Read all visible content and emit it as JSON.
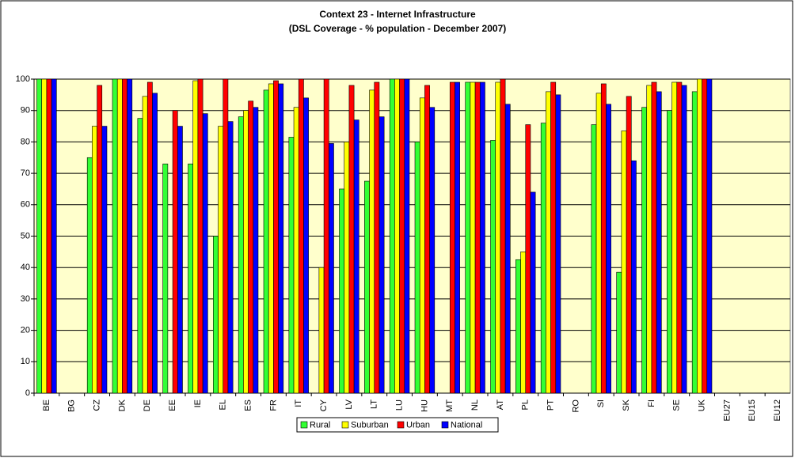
{
  "chart_data": {
    "type": "bar",
    "title": "Context 23 - Internet Infrastructure",
    "subtitle": "(DSL Coverage - % population - December 2007)",
    "categories": [
      "BE",
      "BG",
      "CZ",
      "DK",
      "DE",
      "EE",
      "IE",
      "EL",
      "ES",
      "FR",
      "IT",
      "CY",
      "LV",
      "LT",
      "LU",
      "HU",
      "MT",
      "NL",
      "AT",
      "PL",
      "PT",
      "RO",
      "SI",
      "SK",
      "FI",
      "SE",
      "UK",
      "EU27",
      "EU15",
      "EU12"
    ],
    "series": [
      {
        "name": "Rural",
        "color": "#33ff33",
        "values": [
          100,
          null,
          75,
          100,
          87.5,
          73,
          73,
          50,
          88,
          96.5,
          81.5,
          null,
          65,
          67.5,
          100,
          80,
          null,
          99,
          80.5,
          42.5,
          86,
          null,
          85.5,
          38.5,
          91,
          90,
          96,
          null,
          null,
          null
        ]
      },
      {
        "name": "Suburban",
        "color": "#ffff00",
        "values": [
          100,
          null,
          85,
          100,
          94.5,
          null,
          99.5,
          85,
          90,
          98.5,
          91,
          40,
          80,
          96.5,
          100,
          94,
          null,
          99,
          99,
          45,
          96,
          null,
          95.5,
          83.5,
          98,
          99,
          100,
          null,
          null,
          null
        ]
      },
      {
        "name": "Urban",
        "color": "#ff0000",
        "values": [
          100,
          null,
          98,
          100,
          99,
          90,
          100,
          100,
          93,
          99.5,
          100,
          100,
          98,
          99,
          100,
          98,
          99,
          99,
          100,
          85.5,
          99,
          null,
          98.5,
          94.5,
          99,
          99,
          100,
          null,
          null,
          null
        ]
      },
      {
        "name": "National",
        "color": "#0000ff",
        "values": [
          100,
          null,
          85,
          100,
          95.5,
          85,
          89,
          86.5,
          91,
          98.5,
          94,
          79.5,
          87,
          88,
          100,
          91,
          99,
          99,
          92,
          64,
          95,
          null,
          92,
          74,
          96,
          98,
          100,
          null,
          null,
          null
        ]
      }
    ],
    "ylim": [
      0,
      100
    ],
    "yticks": [
      0,
      10,
      20,
      30,
      40,
      50,
      60,
      70,
      80,
      90,
      100
    ],
    "grid": true,
    "legend": "bottom"
  }
}
